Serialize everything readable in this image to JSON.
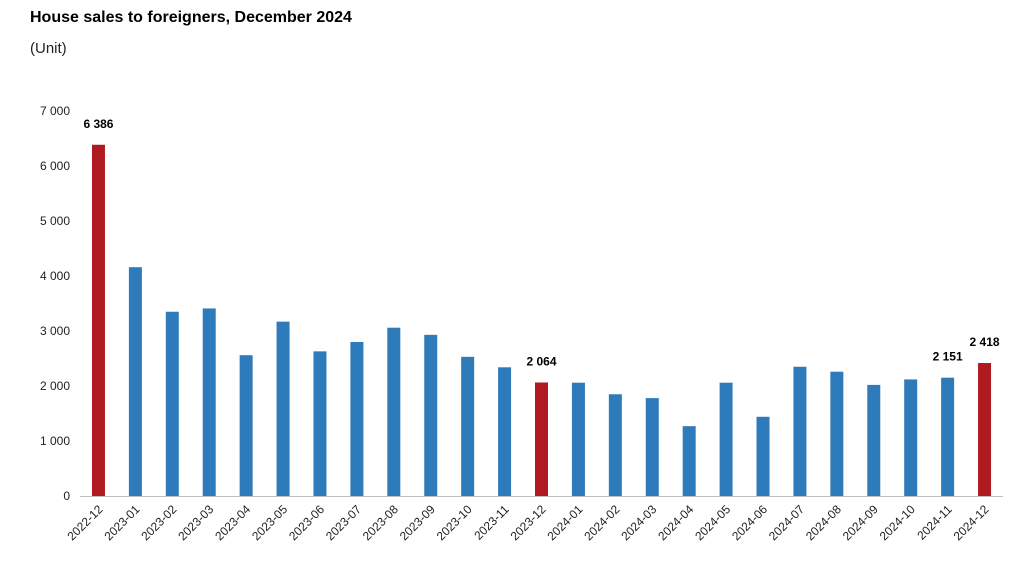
{
  "header": {
    "title": "House sales to foreigners, December 2024",
    "unit": "(Unit)"
  },
  "chart_data": {
    "type": "bar",
    "title": "House sales to foreigners, December 2024",
    "ylabel": "(Unit)",
    "xlabel": "",
    "ylim": [
      0,
      7000
    ],
    "yticks": [
      0,
      1000,
      2000,
      3000,
      4000,
      5000,
      6000,
      7000
    ],
    "ytick_labels": [
      "0",
      "1 000",
      "2 000",
      "3 000",
      "4 000",
      "5 000",
      "6 000",
      "7 000"
    ],
    "grid": false,
    "legend": "none",
    "categories": [
      "2022-12",
      "2023-01",
      "2023-02",
      "2023-03",
      "2023-04",
      "2023-05",
      "2023-06",
      "2023-07",
      "2023-08",
      "2023-09",
      "2023-10",
      "2023-11",
      "2023-12",
      "2024-01",
      "2024-02",
      "2024-03",
      "2024-04",
      "2024-05",
      "2024-06",
      "2024-07",
      "2024-08",
      "2024-09",
      "2024-10",
      "2024-11",
      "2024-12"
    ],
    "values": [
      6386,
      4160,
      3350,
      3410,
      2560,
      3170,
      2630,
      2800,
      3060,
      2930,
      2530,
      2340,
      2064,
      2060,
      1850,
      1780,
      1270,
      2060,
      1440,
      2350,
      2260,
      2020,
      2120,
      2151,
      2418
    ],
    "highlight": [
      "2022-12",
      "2023-12",
      "2024-12"
    ],
    "data_labels": [
      {
        "category": "2022-12",
        "text": "6 386"
      },
      {
        "category": "2023-12",
        "text": "2 064"
      },
      {
        "category": "2024-11",
        "text": "2 151"
      },
      {
        "category": "2024-12",
        "text": "2 418"
      }
    ],
    "colors": {
      "bar": "#2e7bbb",
      "highlight": "#ae1a1f",
      "axis": "#bfbfbf"
    }
  }
}
